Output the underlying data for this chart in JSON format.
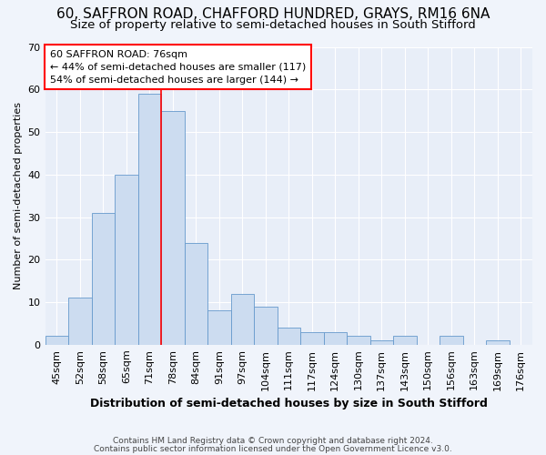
{
  "title_line1": "60, SAFFRON ROAD, CHAFFORD HUNDRED, GRAYS, RM16 6NA",
  "title_line2": "Size of property relative to semi-detached houses in South Stifford",
  "xlabel": "Distribution of semi-detached houses by size in South Stifford",
  "ylabel": "Number of semi-detached properties",
  "categories": [
    "45sqm",
    "52sqm",
    "58sqm",
    "65sqm",
    "71sqm",
    "78sqm",
    "84sqm",
    "91sqm",
    "97sqm",
    "104sqm",
    "111sqm",
    "117sqm",
    "124sqm",
    "130sqm",
    "137sqm",
    "143sqm",
    "150sqm",
    "156sqm",
    "163sqm",
    "169sqm",
    "176sqm"
  ],
  "values": [
    2,
    11,
    31,
    40,
    59,
    55,
    24,
    8,
    12,
    9,
    4,
    3,
    3,
    2,
    1,
    2,
    0,
    2,
    0,
    1,
    0
  ],
  "bar_color": "#ccdcf0",
  "bar_edge_color": "#6699cc",
  "annotation_text_line1": "60 SAFFRON ROAD: 76sqm",
  "annotation_text_line2": "← 44% of semi-detached houses are smaller (117)",
  "annotation_text_line3": "54% of semi-detached houses are larger (144) →",
  "annotation_box_color": "white",
  "annotation_box_edge_color": "red",
  "vline_color": "red",
  "vline_x_index": 5,
  "ylim": [
    0,
    70
  ],
  "yticks": [
    0,
    10,
    20,
    30,
    40,
    50,
    60,
    70
  ],
  "footnote_line1": "Contains HM Land Registry data © Crown copyright and database right 2024.",
  "footnote_line2": "Contains public sector information licensed under the Open Government Licence v3.0.",
  "background_color": "#f0f4fb",
  "plot_background_color": "#e8eef8",
  "title1_fontsize": 11,
  "title2_fontsize": 9.5,
  "xlabel_fontsize": 9,
  "ylabel_fontsize": 8,
  "tick_fontsize": 8,
  "annot_fontsize": 8,
  "footnote_fontsize": 6.5
}
